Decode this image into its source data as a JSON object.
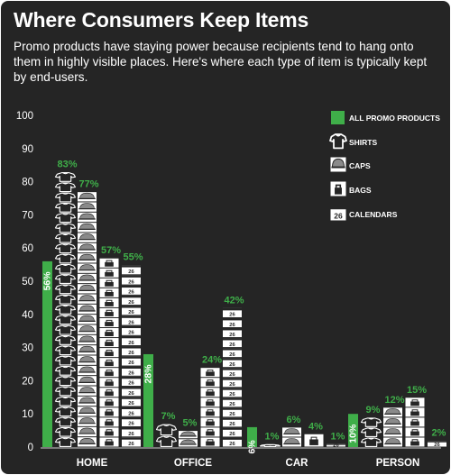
{
  "title": "Where Consumers Keep Items",
  "subtitle": "Promo products have staying power because recipients tend to hang onto them in highly visible places. Here's where each type of item is typically kept by end-users.",
  "colors": {
    "background": "#252525",
    "accent": "#3fae49",
    "text": "#ffffff",
    "icon": "#ffffff"
  },
  "calendar_icon_text": "26",
  "chart_data": {
    "type": "bar",
    "title": "Where Consumers Keep Items",
    "categories": [
      "HOME",
      "OFFICE",
      "CAR",
      "PERSON"
    ],
    "series": [
      {
        "name": "ALL PROMO PRODUCTS",
        "icon": "solid-bar",
        "color": "#3fae49",
        "values": [
          56,
          28,
          6,
          10
        ],
        "labels": [
          "56%",
          "28%",
          "6%",
          "10%"
        ]
      },
      {
        "name": "SHIRTS",
        "icon": "shirt-icon",
        "values": [
          83,
          7,
          1,
          9
        ],
        "labels": [
          "83%",
          "7%",
          "1%",
          "9%"
        ]
      },
      {
        "name": "CAPS",
        "icon": "cap-icon",
        "values": [
          77,
          5,
          6,
          12
        ],
        "labels": [
          "77%",
          "5%",
          "6%",
          "12%"
        ]
      },
      {
        "name": "BAGS",
        "icon": "bag-icon",
        "values": [
          57,
          24,
          4,
          15
        ],
        "labels": [
          "57%",
          "24%",
          "4%",
          "15%"
        ]
      },
      {
        "name": "CALENDARS",
        "icon": "calendar-icon",
        "values": [
          55,
          42,
          1,
          2
        ],
        "labels": [
          "55%",
          "42%",
          "1%",
          "2%"
        ]
      }
    ],
    "yticks": [
      "0",
      "10",
      "20",
      "30",
      "40",
      "50",
      "60",
      "70",
      "80",
      "90",
      "100"
    ],
    "ylim": [
      0,
      100
    ],
    "legend_position": "top-right",
    "grid": false
  }
}
